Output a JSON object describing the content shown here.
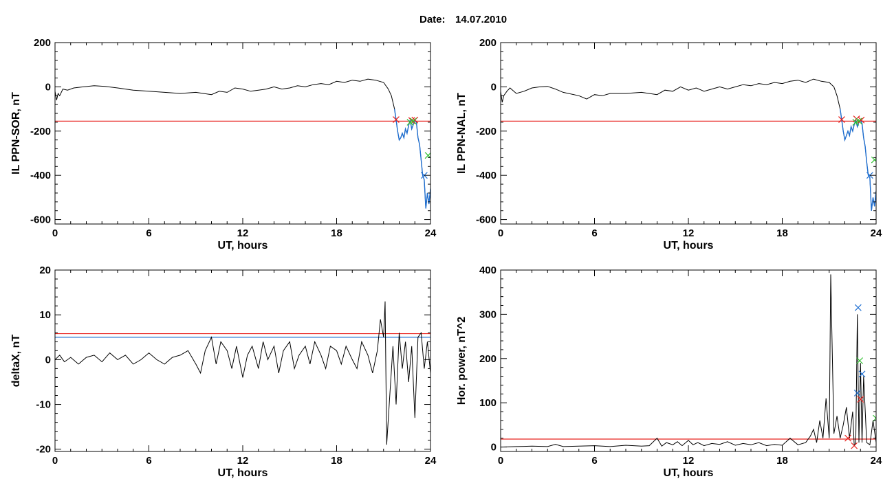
{
  "figure": {
    "date_label": "Date:",
    "date_value": "14.07.2010"
  },
  "colors": {
    "trace": "#000000",
    "threshold_red": "#e8201c",
    "threshold_blue": "#1f6fd1",
    "marker_red": "#e8201c",
    "marker_green": "#2fbf2f",
    "marker_blue": "#1f6fd1",
    "highlight_segment": "#1f6fd1"
  },
  "chart_data": [
    {
      "id": "il-ppn-sor",
      "type": "line",
      "xlabel": "UT, hours",
      "ylabel": "IL PPN-SOR, nT",
      "xlim": [
        0,
        24
      ],
      "ylim": [
        -620,
        200
      ],
      "xticks": [
        "0",
        "6",
        "12",
        "18",
        "24"
      ],
      "yticks": [
        "-600",
        "-400",
        "-200",
        "0",
        "200"
      ],
      "ytick_values": [
        -600,
        -400,
        -200,
        0,
        200
      ],
      "grid": false,
      "series": [
        {
          "x": [
            0,
            0.1,
            0.2,
            0.3,
            0.5,
            0.8,
            1.2,
            1.8,
            2.5,
            3.2,
            4,
            5,
            6,
            7,
            8,
            9,
            10,
            10.5,
            11,
            11.5,
            12,
            12.5,
            13,
            13.5,
            14,
            14.5,
            15,
            15.5,
            16,
            16.5,
            17,
            17.5,
            18,
            18.5,
            19,
            19.5,
            20,
            20.5,
            21,
            21.3,
            21.5,
            21.7,
            21.8,
            21.9,
            22,
            22.1,
            22.2,
            22.3,
            22.4,
            22.5,
            22.6,
            22.7,
            22.8,
            22.9,
            23,
            23.1,
            23.2,
            23.3,
            23.4,
            23.5,
            23.6,
            23.7,
            23.8,
            23.9,
            24
          ],
          "y": [
            -20,
            -60,
            -30,
            -40,
            -10,
            -15,
            -5,
            0,
            5,
            2,
            -5,
            -15,
            -20,
            -25,
            -30,
            -25,
            -35,
            -20,
            -25,
            -5,
            -10,
            -20,
            -15,
            -10,
            0,
            -10,
            -5,
            5,
            0,
            10,
            15,
            10,
            25,
            20,
            30,
            25,
            35,
            30,
            20,
            -10,
            -40,
            -100,
            -150,
            -200,
            -240,
            -230,
            -210,
            -230,
            -190,
            -210,
            -175,
            -150,
            -190,
            -170,
            -150,
            -160,
            -230,
            -260,
            -330,
            -400,
            -420,
            -550,
            -480,
            -530,
            -460
          ],
          "highlight_from_x": 21.7
        }
      ],
      "hlines": [
        {
          "y": -155,
          "color": "threshold_red"
        }
      ],
      "markers": [
        {
          "x": 21.8,
          "y": -148,
          "color": "marker_red"
        },
        {
          "x": 22.8,
          "y": -152,
          "color": "marker_red"
        },
        {
          "x": 23.0,
          "y": -150,
          "color": "marker_red"
        },
        {
          "x": 22.7,
          "y": -160,
          "color": "marker_green"
        },
        {
          "x": 22.9,
          "y": -155,
          "color": "marker_green"
        },
        {
          "x": 23.85,
          "y": -310,
          "color": "marker_green"
        },
        {
          "x": 23.6,
          "y": -400,
          "color": "marker_blue"
        }
      ]
    },
    {
      "id": "il-ppn-nal",
      "type": "line",
      "xlabel": "UT, hours",
      "ylabel": "IL PPN-NAL, nT",
      "xlim": [
        0,
        24
      ],
      "ylim": [
        -620,
        200
      ],
      "xticks": [
        "0",
        "6",
        "12",
        "18",
        "24"
      ],
      "yticks": [
        "-600",
        "-400",
        "-200",
        "0",
        "200"
      ],
      "ytick_values": [
        -600,
        -400,
        -200,
        0,
        200
      ],
      "grid": false,
      "series": [
        {
          "x": [
            0,
            0.1,
            0.2,
            0.4,
            0.6,
            1,
            1.5,
            2,
            2.5,
            3,
            3.5,
            4,
            5,
            5.5,
            6,
            6.5,
            7,
            8,
            9,
            10,
            10.5,
            11,
            11.5,
            12,
            12.5,
            13,
            13.5,
            14,
            14.5,
            15,
            15.5,
            16,
            16.5,
            17,
            17.5,
            18,
            18.5,
            19,
            19.5,
            20,
            20.5,
            21,
            21.3,
            21.5,
            21.7,
            21.8,
            21.9,
            22,
            22.1,
            22.2,
            22.3,
            22.4,
            22.5,
            22.6,
            22.7,
            22.8,
            22.9,
            23,
            23.1,
            23.2,
            23.3,
            23.4,
            23.5,
            23.6,
            23.7,
            23.8,
            23.9,
            24
          ],
          "y": [
            -20,
            -70,
            -40,
            -20,
            -5,
            -30,
            -20,
            -5,
            0,
            2,
            -10,
            -25,
            -40,
            -55,
            -35,
            -40,
            -30,
            -30,
            -25,
            -35,
            -15,
            -20,
            0,
            -15,
            -5,
            -20,
            -10,
            0,
            -10,
            0,
            10,
            5,
            15,
            10,
            20,
            15,
            25,
            30,
            20,
            35,
            25,
            20,
            0,
            -40,
            -100,
            -150,
            -200,
            -240,
            -220,
            -200,
            -220,
            -180,
            -200,
            -170,
            -150,
            -180,
            -160,
            -150,
            -165,
            -230,
            -270,
            -340,
            -400,
            -410,
            -560,
            -500,
            -540,
            -470
          ],
          "highlight_from_x": 21.7
        }
      ],
      "hlines": [
        {
          "y": -155,
          "color": "threshold_red"
        }
      ],
      "markers": [
        {
          "x": 21.8,
          "y": -148,
          "color": "marker_red"
        },
        {
          "x": 22.75,
          "y": -145,
          "color": "marker_red"
        },
        {
          "x": 23.05,
          "y": -150,
          "color": "marker_red"
        },
        {
          "x": 22.7,
          "y": -160,
          "color": "marker_green"
        },
        {
          "x": 22.9,
          "y": -155,
          "color": "marker_green"
        },
        {
          "x": 23.9,
          "y": -330,
          "color": "marker_green"
        },
        {
          "x": 23.6,
          "y": -400,
          "color": "marker_blue"
        }
      ]
    },
    {
      "id": "deltax",
      "type": "line",
      "xlabel": "UT, hours",
      "ylabel": "deltaX, nT",
      "xlim": [
        0,
        24
      ],
      "ylim": [
        -20.5,
        20
      ],
      "xticks": [
        "0",
        "6",
        "12",
        "18",
        "24"
      ],
      "yticks": [
        "-20",
        "-10",
        "0",
        "10",
        "20"
      ],
      "ytick_values": [
        -20,
        -10,
        0,
        10,
        20
      ],
      "grid": false,
      "series": [
        {
          "x": [
            0,
            0.3,
            0.6,
            1,
            1.5,
            2,
            2.5,
            3,
            3.5,
            4,
            4.5,
            5,
            5.5,
            6,
            6.5,
            7,
            7.5,
            8,
            8.5,
            9,
            9.3,
            9.6,
            10,
            10.3,
            10.6,
            11,
            11.3,
            11.6,
            12,
            12.3,
            12.6,
            13,
            13.3,
            13.6,
            14,
            14.3,
            14.6,
            15,
            15.3,
            15.6,
            16,
            16.3,
            16.6,
            17,
            17.3,
            17.6,
            18,
            18.3,
            18.6,
            19,
            19.3,
            19.6,
            20,
            20.3,
            20.6,
            20.8,
            21,
            21.1,
            21.2,
            21.4,
            21.6,
            21.8,
            22,
            22.2,
            22.4,
            22.6,
            22.8,
            23,
            23.2,
            23.4,
            23.6,
            23.8,
            24
          ],
          "y": [
            0,
            1,
            -0.5,
            0.5,
            -1,
            0.5,
            1,
            -0.5,
            1.5,
            0,
            1,
            -1,
            0,
            1.5,
            0,
            -1,
            0.5,
            1,
            2,
            -1,
            -3,
            2,
            5,
            -1,
            4,
            2,
            -2,
            3,
            -4,
            1,
            3,
            -2,
            4,
            0,
            3,
            -3,
            2,
            4,
            -2,
            1,
            3,
            -1,
            4,
            1,
            -2,
            3,
            2,
            -1,
            3,
            0,
            -2,
            4,
            1,
            -3,
            2,
            9,
            5,
            13,
            -19,
            -8,
            3,
            -10,
            6,
            -2,
            4,
            -5,
            3,
            -13,
            5,
            6,
            -2,
            4,
            -3
          ],
          "highlight_from_x": null
        }
      ],
      "hlines": [
        {
          "y": 5.8,
          "color": "threshold_red"
        },
        {
          "y": 5.0,
          "color": "threshold_blue"
        }
      ],
      "markers": []
    },
    {
      "id": "hor-power",
      "type": "line",
      "xlabel": "UT, hours",
      "ylabel": "Hor. power, nT^2",
      "xlim": [
        0,
        24
      ],
      "ylim": [
        -10,
        400
      ],
      "xticks": [
        "0",
        "6",
        "12",
        "18",
        "24"
      ],
      "yticks": [
        "0",
        "100",
        "200",
        "300",
        "400"
      ],
      "ytick_values": [
        0,
        100,
        200,
        300,
        400
      ],
      "grid": false,
      "series": [
        {
          "x": [
            0,
            1,
            2,
            3,
            3.5,
            4,
            5,
            6,
            7,
            8,
            9,
            9.5,
            10,
            10.3,
            10.6,
            11,
            11.3,
            11.6,
            12,
            12.3,
            12.6,
            13,
            13.5,
            14,
            14.5,
            15,
            15.5,
            16,
            16.5,
            17,
            17.5,
            18,
            18.5,
            19,
            19.5,
            19.8,
            20,
            20.2,
            20.4,
            20.6,
            20.8,
            21,
            21.1,
            21.2,
            21.3,
            21.5,
            21.7,
            21.9,
            22.1,
            22.3,
            22.5,
            22.6,
            22.7,
            22.8,
            22.9,
            23,
            23.1,
            23.2,
            23.4,
            23.6,
            23.8,
            24
          ],
          "y": [
            0,
            1,
            2,
            1,
            6,
            1,
            2,
            3,
            1,
            4,
            2,
            3,
            20,
            2,
            10,
            5,
            12,
            3,
            15,
            5,
            10,
            3,
            8,
            6,
            12,
            4,
            8,
            5,
            10,
            3,
            6,
            4,
            20,
            5,
            10,
            25,
            40,
            10,
            60,
            20,
            110,
            20,
            390,
            210,
            30,
            70,
            20,
            50,
            90,
            20,
            80,
            2,
            10,
            300,
            10,
            190,
            10,
            160,
            10,
            5,
            60,
            10
          ],
          "highlight_from_x": null
        }
      ],
      "hlines": [
        {
          "y": 18,
          "color": "threshold_red"
        }
      ],
      "markers": [
        {
          "x": 22.85,
          "y": 315,
          "color": "marker_blue"
        },
        {
          "x": 23.1,
          "y": 165,
          "color": "marker_blue"
        },
        {
          "x": 22.8,
          "y": 122,
          "color": "marker_blue"
        },
        {
          "x": 22.95,
          "y": 195,
          "color": "marker_green"
        },
        {
          "x": 24.0,
          "y": 65,
          "color": "marker_green"
        },
        {
          "x": 23.0,
          "y": 108,
          "color": "marker_red"
        },
        {
          "x": 22.6,
          "y": 3,
          "color": "marker_red"
        },
        {
          "x": 22.2,
          "y": 20,
          "color": "marker_red"
        }
      ]
    }
  ]
}
